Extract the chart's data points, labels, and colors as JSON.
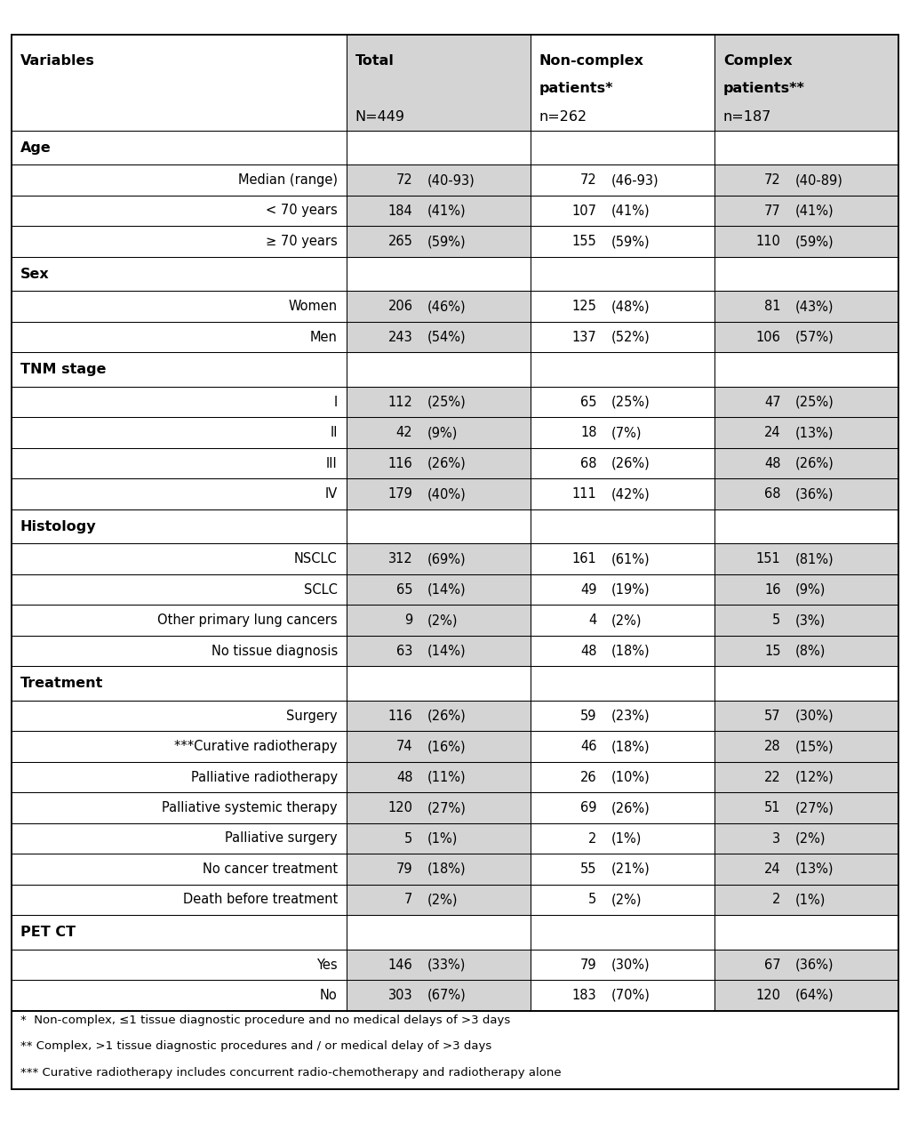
{
  "header_row": {
    "col1": "Variables",
    "col2_top": "Total",
    "col2_sub": "N=449",
    "col3_top_line1": "Non-complex",
    "col3_top_line2": "patients*",
    "col3_sub": "n=262",
    "col4_top_line1": "Complex",
    "col4_top_line2": "patients**",
    "col4_sub": "n=187"
  },
  "sections": [
    {
      "section_label": "Age",
      "rows": [
        {
          "label": "Median (range)",
          "total_n": "72",
          "total_pct": "(40-93)",
          "nc_n": "72",
          "nc_pct": "(46-93)",
          "c_n": "72",
          "c_pct": "(40-89)"
        },
        {
          "label": "< 70 years",
          "total_n": "184",
          "total_pct": "(41%)",
          "nc_n": "107",
          "nc_pct": "(41%)",
          "c_n": "77",
          "c_pct": "(41%)"
        },
        {
          "label": "≥ 70 years",
          "total_n": "265",
          "total_pct": "(59%)",
          "nc_n": "155",
          "nc_pct": "(59%)",
          "c_n": "110",
          "c_pct": "(59%)"
        }
      ]
    },
    {
      "section_label": "Sex",
      "rows": [
        {
          "label": "Women",
          "total_n": "206",
          "total_pct": "(46%)",
          "nc_n": "125",
          "nc_pct": "(48%)",
          "c_n": "81",
          "c_pct": "(43%)"
        },
        {
          "label": "Men",
          "total_n": "243",
          "total_pct": "(54%)",
          "nc_n": "137",
          "nc_pct": "(52%)",
          "c_n": "106",
          "c_pct": "(57%)"
        }
      ]
    },
    {
      "section_label": "TNM stage",
      "rows": [
        {
          "label": "I",
          "total_n": "112",
          "total_pct": "(25%)",
          "nc_n": "65",
          "nc_pct": "(25%)",
          "c_n": "47",
          "c_pct": "(25%)"
        },
        {
          "label": "II",
          "total_n": "42",
          "total_pct": "(9%)",
          "nc_n": "18",
          "nc_pct": "(7%)",
          "c_n": "24",
          "c_pct": "(13%)"
        },
        {
          "label": "III",
          "total_n": "116",
          "total_pct": "(26%)",
          "nc_n": "68",
          "nc_pct": "(26%)",
          "c_n": "48",
          "c_pct": "(26%)"
        },
        {
          "label": "IV",
          "total_n": "179",
          "total_pct": "(40%)",
          "nc_n": "111",
          "nc_pct": "(42%)",
          "c_n": "68",
          "c_pct": "(36%)"
        }
      ]
    },
    {
      "section_label": "Histology",
      "rows": [
        {
          "label": "NSCLC",
          "total_n": "312",
          "total_pct": "(69%)",
          "nc_n": "161",
          "nc_pct": "(61%)",
          "c_n": "151",
          "c_pct": "(81%)"
        },
        {
          "label": "SCLC",
          "total_n": "65",
          "total_pct": "(14%)",
          "nc_n": "49",
          "nc_pct": "(19%)",
          "c_n": "16",
          "c_pct": "(9%)"
        },
        {
          "label": "Other primary lung cancers",
          "total_n": "9",
          "total_pct": "(2%)",
          "nc_n": "4",
          "nc_pct": "(2%)",
          "c_n": "5",
          "c_pct": "(3%)"
        },
        {
          "label": "No tissue diagnosis",
          "total_n": "63",
          "total_pct": "(14%)",
          "nc_n": "48",
          "nc_pct": "(18%)",
          "c_n": "15",
          "c_pct": "(8%)"
        }
      ]
    },
    {
      "section_label": "Treatment",
      "rows": [
        {
          "label": "Surgery",
          "total_n": "116",
          "total_pct": "(26%)",
          "nc_n": "59",
          "nc_pct": "(23%)",
          "c_n": "57",
          "c_pct": "(30%)"
        },
        {
          "label": "***Curative radiotherapy",
          "total_n": "74",
          "total_pct": "(16%)",
          "nc_n": "46",
          "nc_pct": "(18%)",
          "c_n": "28",
          "c_pct": "(15%)"
        },
        {
          "label": "Palliative radiotherapy",
          "total_n": "48",
          "total_pct": "(11%)",
          "nc_n": "26",
          "nc_pct": "(10%)",
          "c_n": "22",
          "c_pct": "(12%)"
        },
        {
          "label": "Palliative systemic therapy",
          "total_n": "120",
          "total_pct": "(27%)",
          "nc_n": "69",
          "nc_pct": "(26%)",
          "c_n": "51",
          "c_pct": "(27%)"
        },
        {
          "label": "Palliative surgery",
          "total_n": "5",
          "total_pct": "(1%)",
          "nc_n": "2",
          "nc_pct": "(1%)",
          "c_n": "3",
          "c_pct": "(2%)"
        },
        {
          "label": "No cancer treatment",
          "total_n": "79",
          "total_pct": "(18%)",
          "nc_n": "55",
          "nc_pct": "(21%)",
          "c_n": "24",
          "c_pct": "(13%)"
        },
        {
          "label": "Death before treatment",
          "total_n": "7",
          "total_pct": "(2%)",
          "nc_n": "5",
          "nc_pct": "(2%)",
          "c_n": "2",
          "c_pct": "(1%)"
        }
      ]
    },
    {
      "section_label": "PET CT",
      "rows": [
        {
          "label": "Yes",
          "total_n": "146",
          "total_pct": "(33%)",
          "nc_n": "79",
          "nc_pct": "(30%)",
          "c_n": "67",
          "c_pct": "(36%)"
        },
        {
          "label": "No",
          "total_n": "303",
          "total_pct": "(67%)",
          "nc_n": "183",
          "nc_pct": "(70%)",
          "c_n": "120",
          "c_pct": "(64%)"
        }
      ]
    }
  ],
  "footnotes": [
    "*  Non-complex, ≤1 tissue diagnostic procedure and no medical delays of >3 days",
    "** Complex, >1 tissue diagnostic procedures and / or medical delay of >3 days",
    "*** Curative radiotherapy includes concurrent radio-chemotherapy and radiotherapy alone"
  ],
  "bg_white": "#ffffff",
  "bg_gray": "#d4d4d4",
  "border_color": "#000000",
  "fs_header": 11.5,
  "fs_body": 10.5,
  "fs_footnote": 9.5
}
